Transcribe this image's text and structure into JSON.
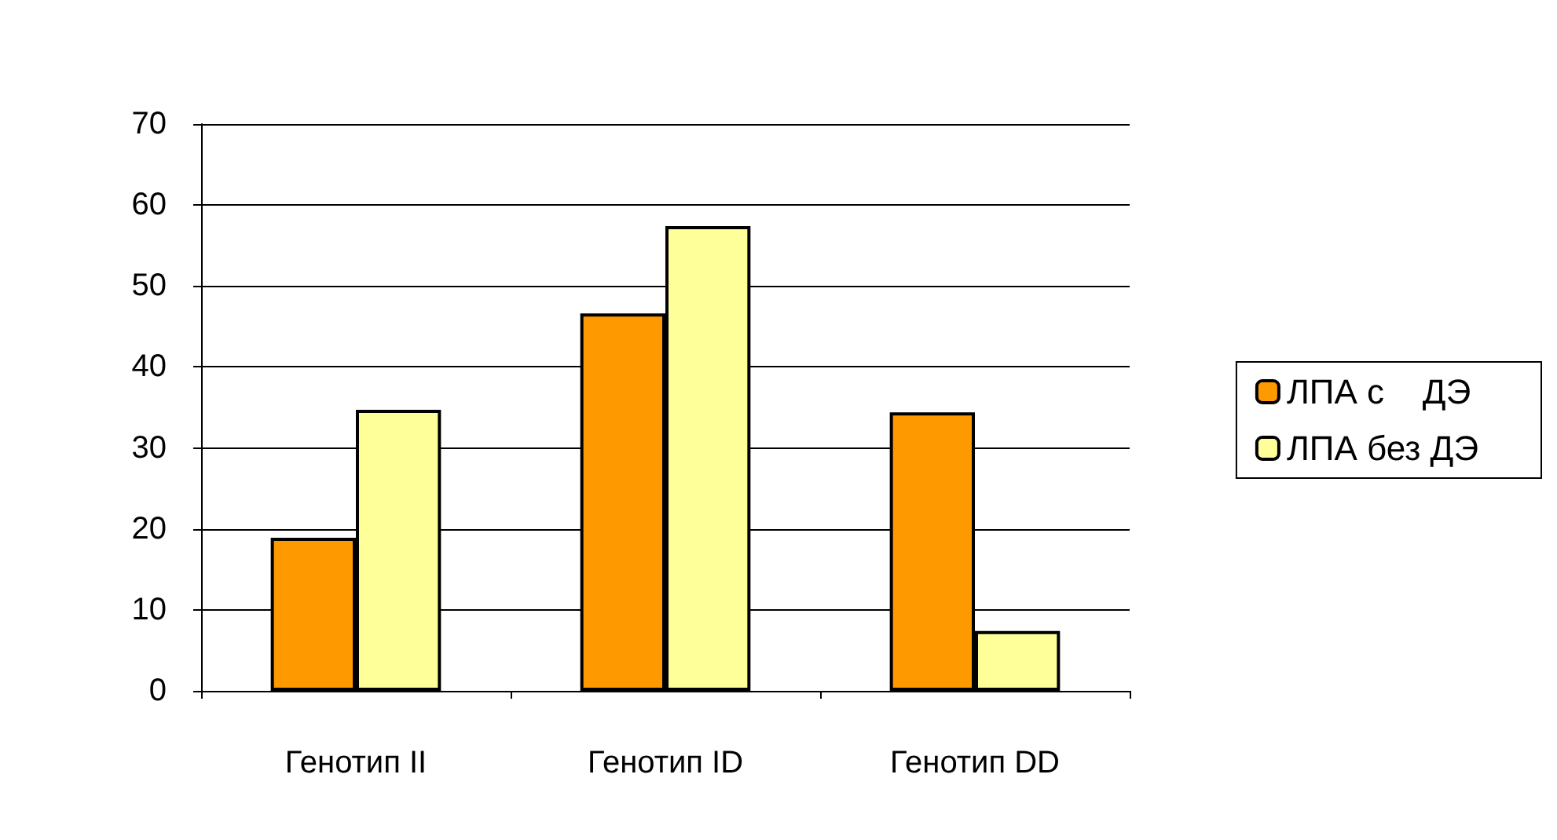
{
  "chart_data": {
    "type": "bar",
    "categories": [
      "Генотип II",
      "Генотип ID",
      "Генотип DD"
    ],
    "series": [
      {
        "name": "ЛПА с    ДЭ",
        "color": "#ff9900",
        "values": [
          18.9,
          46.6,
          34.4
        ]
      },
      {
        "name": "ЛПА без ДЭ",
        "color": "#ffff99",
        "values": [
          34.7,
          57.4,
          7.4
        ]
      }
    ],
    "ylim": [
      0,
      70
    ],
    "yticks": [
      0,
      10,
      20,
      30,
      40,
      50,
      60,
      70
    ],
    "grid": "y",
    "legend": "right"
  }
}
